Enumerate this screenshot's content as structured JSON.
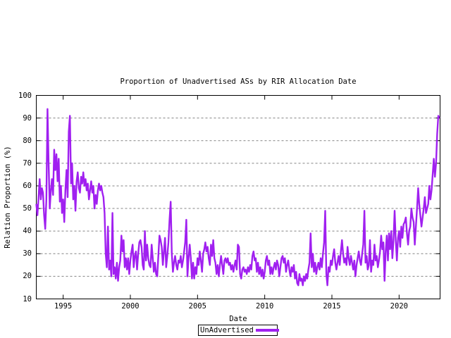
{
  "title": "Proportion of Unadvertised ASs by RIR Allocation Date",
  "colors": {
    "line": "#A020F0",
    "grid": "#848484",
    "axis": "#000000",
    "background": "#ffffff",
    "text": "#000000"
  },
  "legend": {
    "label": "UnAdvertised"
  },
  "chart_data": {
    "type": "line",
    "title": "Proportion of Unadvertised ASs by RIR Allocation Date",
    "xlabel": "Date",
    "ylabel": "Relation Proportion (%)",
    "xlim": [
      1993.0,
      2023.05
    ],
    "ylim": [
      10,
      100
    ],
    "x_ticks": [
      1995,
      2000,
      2005,
      2010,
      2015,
      2020
    ],
    "y_ticks": [
      10,
      20,
      30,
      40,
      50,
      60,
      70,
      80,
      90,
      100
    ],
    "grid": "horizontal-dashed",
    "legend_position": "below-outside-center",
    "series": [
      {
        "name": "UnAdvertised",
        "color": "#A020F0",
        "start_year": 1993.0,
        "points_per_year": 12,
        "values": [
          52,
          47,
          55,
          63,
          54,
          59,
          57,
          47,
          41,
          54,
          94,
          70,
          50,
          58,
          63,
          56,
          76,
          67,
          74,
          62,
          72,
          53,
          60,
          48,
          54,
          44,
          58,
          67,
          55,
          84,
          91,
          61,
          70,
          54,
          60,
          49,
          62,
          66,
          59,
          57,
          64,
          61,
          66,
          60,
          63,
          58,
          61,
          54,
          58,
          62,
          57,
          60,
          50,
          56,
          52,
          58,
          61,
          58,
          60,
          57,
          55,
          48,
          30,
          24,
          42,
          23,
          27,
          20,
          48,
          21,
          24,
          19,
          26,
          18,
          24,
          27,
          38,
          31,
          36,
          24,
          28,
          23,
          28,
          21,
          27,
          31,
          34,
          24,
          29,
          31,
          23,
          30,
          35,
          36,
          33,
          25,
          23,
          40,
          27,
          34,
          28,
          25,
          24,
          34,
          28,
          22,
          26,
          21,
          20,
          29,
          38,
          36,
          33,
          25,
          31,
          37,
          24,
          29,
          35,
          45,
          53,
          30,
          22,
          26,
          29,
          25,
          23,
          27,
          26,
          29,
          24,
          27,
          31,
          35,
          45,
          20,
          28,
          34,
          28,
          19,
          26,
          19,
          24,
          21,
          28,
          25,
          31,
          27,
          22,
          30,
          32,
          35,
          31,
          33,
          28,
          25,
          34,
          29,
          36,
          28,
          26,
          21,
          25,
          20,
          25,
          29,
          25,
          21,
          27,
          28,
          26,
          28,
          25,
          26,
          23,
          25,
          22,
          25,
          27,
          23,
          34,
          33,
          21,
          19,
          23,
          24,
          22,
          23,
          21,
          24,
          22,
          25,
          23,
          29,
          31,
          27,
          28,
          22,
          26,
          21,
          24,
          20,
          23,
          19,
          22,
          27,
          29,
          25,
          27,
          21,
          24,
          21,
          24,
          26,
          23,
          27,
          25,
          20,
          24,
          28,
          29,
          26,
          28,
          22,
          25,
          27,
          23,
          20,
          24,
          22,
          25,
          19,
          22,
          17,
          16,
          21,
          18,
          19,
          16,
          20,
          18,
          21,
          19,
          23,
          26,
          39,
          24,
          30,
          22,
          26,
          21,
          24,
          26,
          23,
          28,
          24,
          30,
          35,
          49,
          21,
          16,
          24,
          22,
          27,
          25,
          29,
          32,
          26,
          23,
          26,
          29,
          25,
          31,
          36,
          30,
          26,
          28,
          25,
          33,
          28,
          25,
          29,
          26,
          23,
          27,
          20,
          25,
          28,
          31,
          27,
          25,
          30,
          34,
          49,
          26,
          29,
          23,
          25,
          36,
          22,
          27,
          25,
          34,
          27,
          29,
          24,
          27,
          31,
          38,
          32,
          35,
          18,
          31,
          38,
          27,
          39,
          32,
          40,
          28,
          36,
          49,
          36,
          27,
          37,
          40,
          33,
          42,
          37,
          43,
          44,
          46,
          39,
          34,
          40,
          42,
          50,
          46,
          44,
          34,
          42,
          50,
          59,
          52,
          47,
          42,
          46,
          50,
          55,
          48,
          50,
          52,
          60,
          54,
          58,
          65,
          72,
          64,
          70,
          83,
          91,
          90
        ]
      }
    ]
  }
}
